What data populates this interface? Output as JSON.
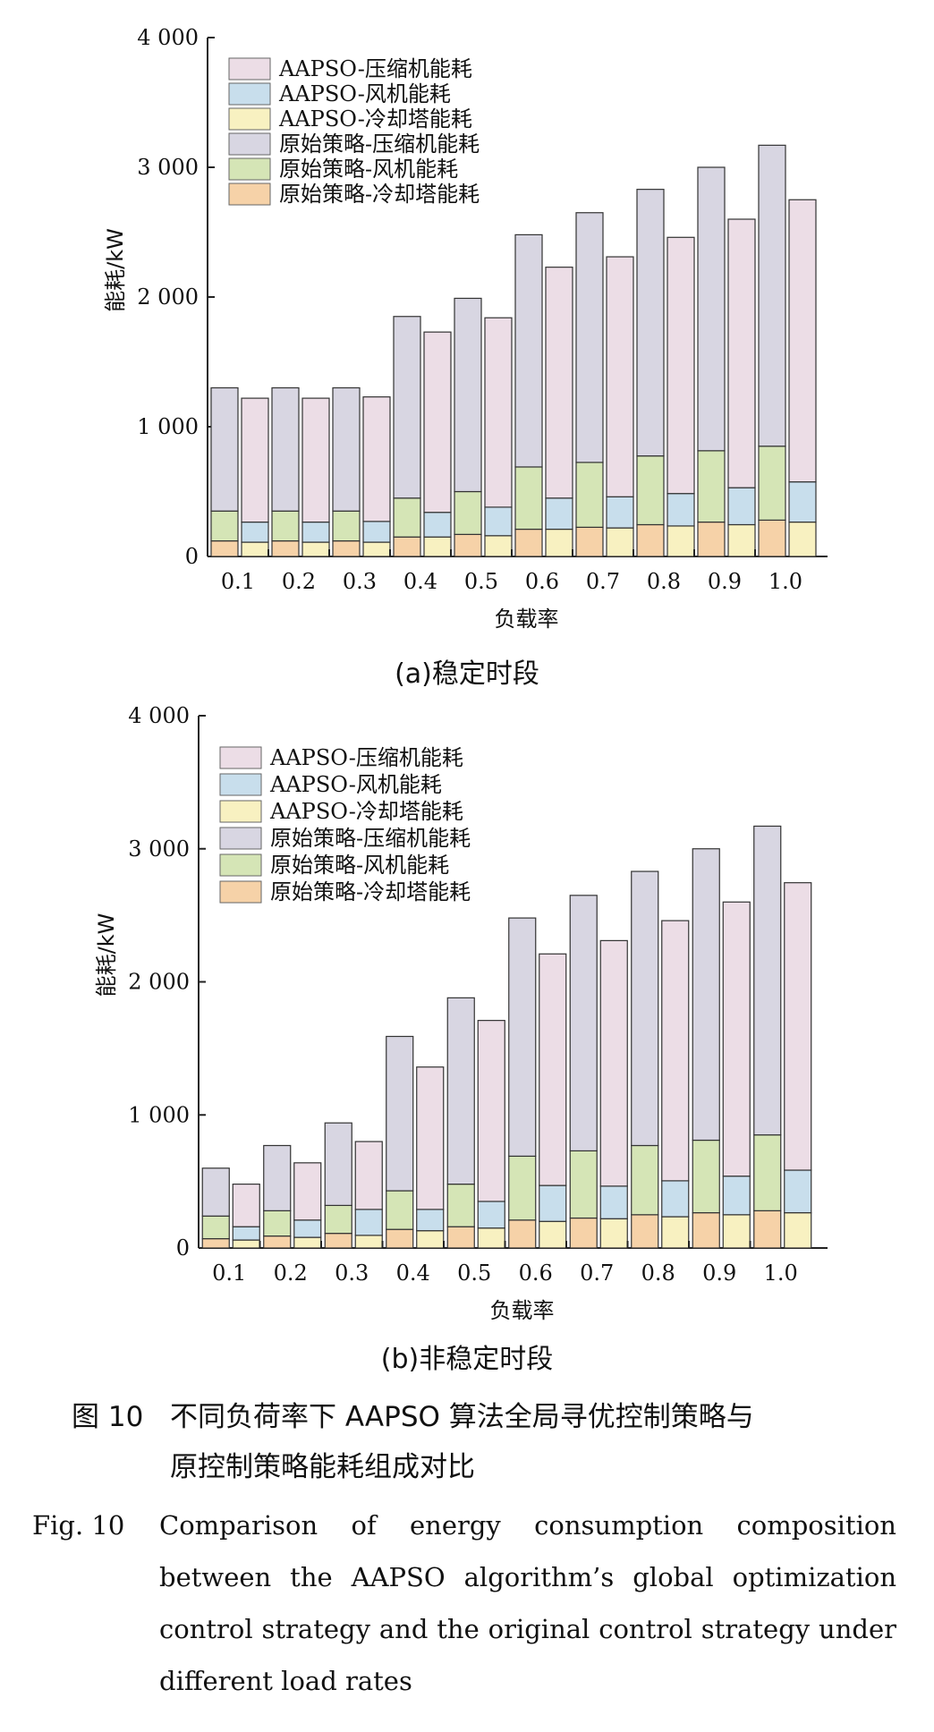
{
  "chart_data": [
    {
      "type": "bar",
      "subcaption": "(a)稳定时段",
      "xlabel": "负载率",
      "ylabel": "能耗/kW",
      "ylim": [
        0,
        4000
      ],
      "yticks": [
        "0",
        "1 000",
        "2 000",
        "3 000",
        "4 000"
      ],
      "categories": [
        "0.1",
        "0.2",
        "0.3",
        "0.4",
        "0.5",
        "0.6",
        "0.7",
        "0.8",
        "0.9",
        "1.0"
      ],
      "legend_position": "top-left",
      "groups": [
        {
          "stack": "原始策略",
          "series": [
            {
              "name": "原始策略-冷却塔能耗",
              "color": "#f6d2a8",
              "values": [
                120,
                120,
                120,
                150,
                170,
                210,
                225,
                245,
                265,
                280
              ]
            },
            {
              "name": "原始策略-风机能耗",
              "color": "#d5e5b6",
              "values": [
                230,
                230,
                230,
                300,
                330,
                480,
                500,
                530,
                550,
                570
              ]
            },
            {
              "name": "原始策略-压缩机能耗",
              "color": "#d8d6e2",
              "values": [
                950,
                950,
                950,
                1400,
                1490,
                1790,
                1925,
                2055,
                2185,
                2320
              ]
            }
          ]
        },
        {
          "stack": "AAPSO",
          "series": [
            {
              "name": "AAPSO-冷却塔能耗",
              "color": "#f8f1c1",
              "values": [
                110,
                110,
                110,
                150,
                160,
                210,
                220,
                235,
                245,
                265
              ]
            },
            {
              "name": "AAPSO-风机能耗",
              "color": "#c8deec",
              "values": [
                155,
                155,
                160,
                190,
                220,
                240,
                240,
                250,
                285,
                310
              ]
            },
            {
              "name": "AAPSO-压缩机能耗",
              "color": "#ecdde6",
              "values": [
                955,
                955,
                960,
                1390,
                1460,
                1780,
                1850,
                1975,
                2070,
                2175
              ]
            }
          ]
        }
      ]
    },
    {
      "type": "bar",
      "subcaption": "(b)非稳定时段",
      "xlabel": "负载率",
      "ylabel": "能耗/kW",
      "ylim": [
        0,
        4000
      ],
      "yticks": [
        "0",
        "1 000",
        "2 000",
        "3 000",
        "4 000"
      ],
      "categories": [
        "0.1",
        "0.2",
        "0.3",
        "0.4",
        "0.5",
        "0.6",
        "0.7",
        "0.8",
        "0.9",
        "1.0"
      ],
      "legend_position": "top-left",
      "groups": [
        {
          "stack": "原始策略",
          "series": [
            {
              "name": "原始策略-冷却塔能耗",
              "color": "#f6d2a8",
              "values": [
                70,
                90,
                110,
                140,
                160,
                210,
                225,
                250,
                265,
                280
              ]
            },
            {
              "name": "原始策略-风机能耗",
              "color": "#d5e5b6",
              "values": [
                170,
                190,
                210,
                290,
                320,
                480,
                505,
                520,
                545,
                570
              ]
            },
            {
              "name": "原始策略-压缩机能耗",
              "color": "#d8d6e2",
              "values": [
                360,
                490,
                620,
                1160,
                1400,
                1790,
                1920,
                2060,
                2190,
                2320
              ]
            }
          ]
        },
        {
          "stack": "AAPSO",
          "series": [
            {
              "name": "AAPSO-冷却塔能耗",
              "color": "#f8f1c1",
              "values": [
                60,
                80,
                95,
                130,
                150,
                200,
                220,
                235,
                250,
                265
              ]
            },
            {
              "name": "AAPSO-风机能耗",
              "color": "#c8deec",
              "values": [
                100,
                130,
                195,
                160,
                200,
                270,
                245,
                270,
                290,
                320
              ]
            },
            {
              "name": "AAPSO-压缩机能耗",
              "color": "#ecdde6",
              "values": [
                320,
                430,
                510,
                1070,
                1360,
                1740,
                1845,
                1955,
                2060,
                2160
              ]
            }
          ]
        }
      ]
    }
  ],
  "legend_order": [
    "AAPSO-压缩机能耗",
    "AAPSO-风机能耗",
    "AAPSO-冷却塔能耗",
    "原始策略-压缩机能耗",
    "原始策略-风机能耗",
    "原始策略-冷却塔能耗"
  ],
  "caption": {
    "cn_label": "图 10",
    "cn_line1": "不同负荷率下 AAPSO 算法全局寻优控制策略与",
    "cn_line2": "原控制策略能耗组成对比",
    "en_label": "Fig. 10",
    "en_body": "Comparison of energy consumption composition between the AAPSO algorithm’s global optimization control strategy and the original control strategy under different load rates"
  }
}
